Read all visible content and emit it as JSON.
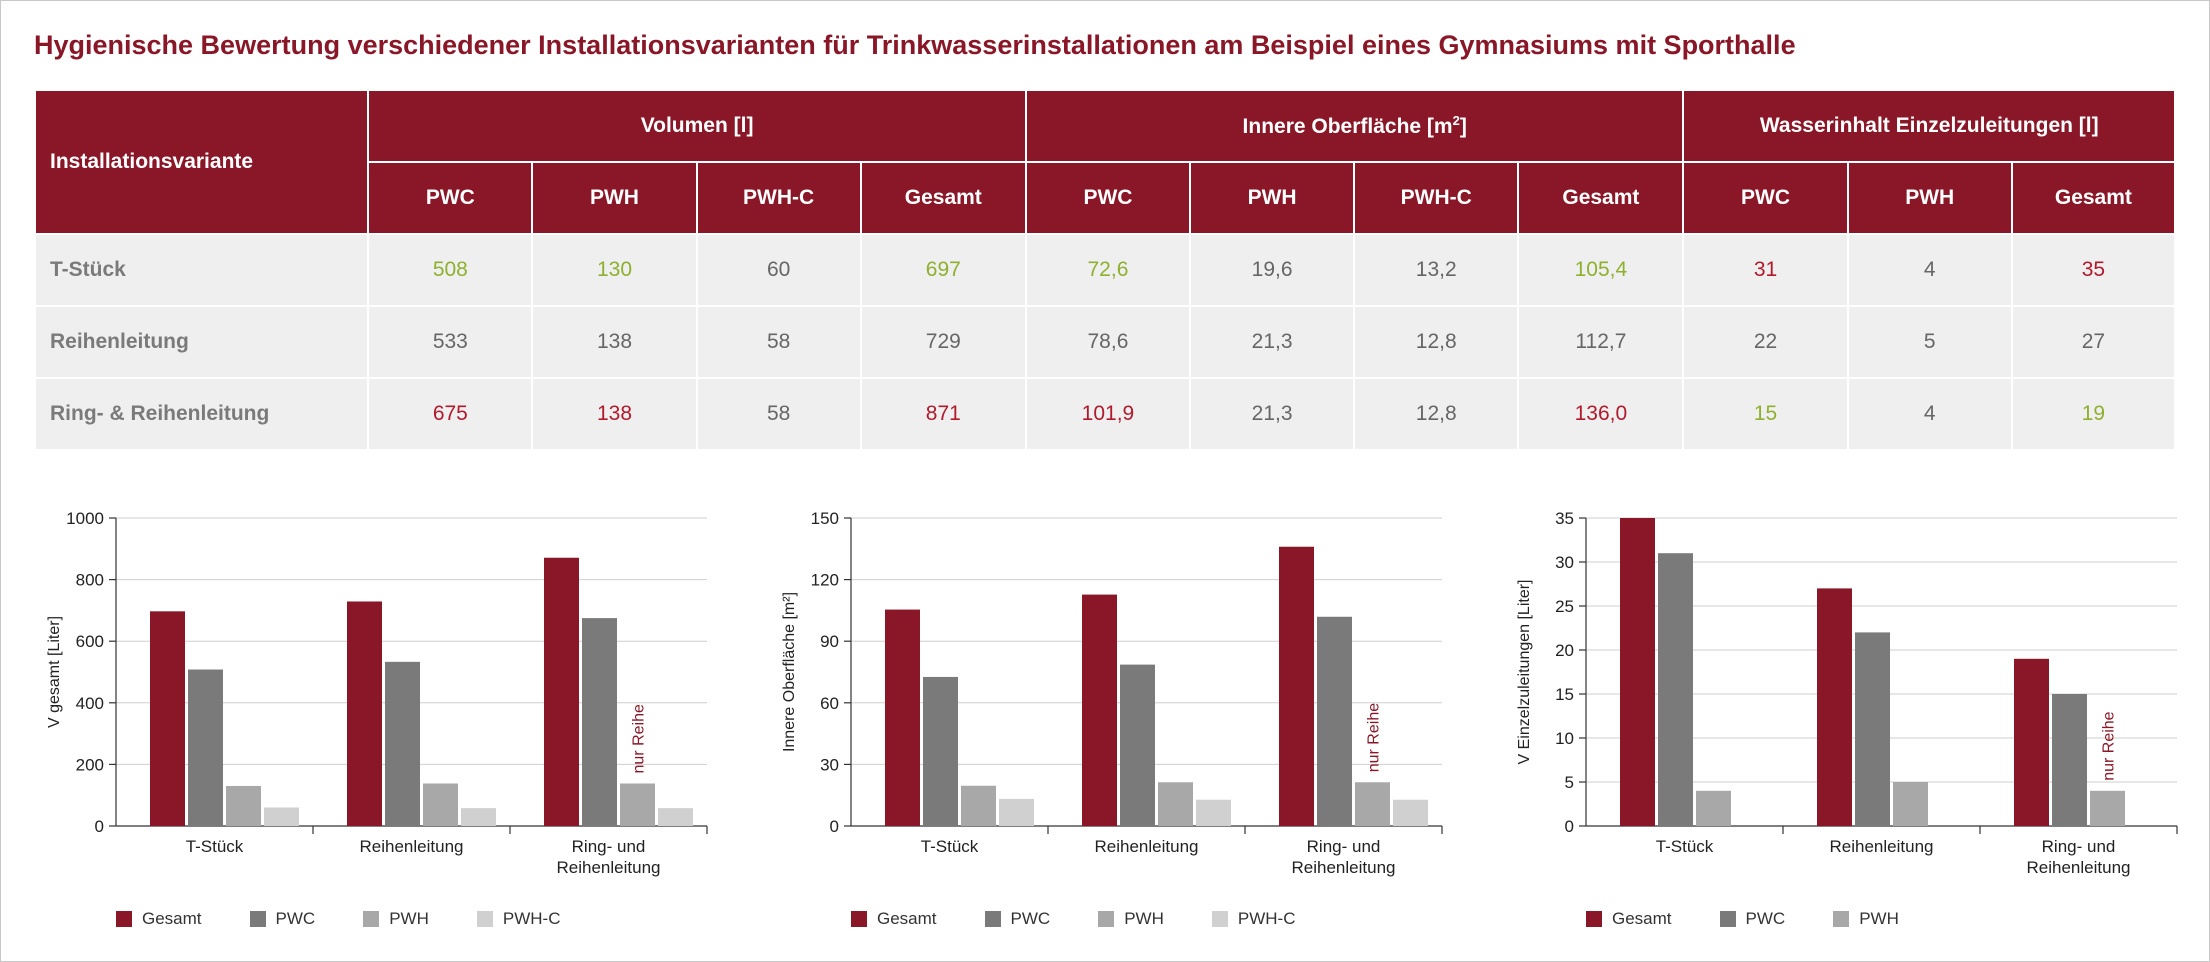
{
  "title": "Hygienische Bewertung verschiedener Installationsvarianten für Trinkwasserinstallationen am Beispiel eines Gymnasiums mit Sporthalle",
  "colors": {
    "gesamt": "#8a1727",
    "pwc": "#7a7a7a",
    "pwh": "#a8a8a8",
    "pwhc": "#d0d0d0",
    "good": "#8fb02e",
    "bad": "#b01a2c"
  },
  "table": {
    "row_header": "Installationsvariante",
    "groups": [
      {
        "label": "Volumen [l]"
      },
      {
        "label": "Innere Oberfläche [m",
        "sup": "2",
        "suffix": "]"
      },
      {
        "label": "Wasserinhalt Einzelzuleitungen [l]"
      }
    ],
    "sub": [
      "PWC",
      "PWH",
      "PWH-C",
      "Gesamt",
      "PWC",
      "PWH",
      "PWH-C",
      "Gesamt",
      "PWC",
      "PWH",
      "Gesamt"
    ],
    "rows": [
      {
        "label": "T-Stück",
        "cells": [
          {
            "v": "508",
            "c": "g"
          },
          {
            "v": "130",
            "c": "g"
          },
          {
            "v": "60",
            "c": ""
          },
          {
            "v": "697",
            "c": "g"
          },
          {
            "v": "72,6",
            "c": "g"
          },
          {
            "v": "19,6",
            "c": ""
          },
          {
            "v": "13,2",
            "c": ""
          },
          {
            "v": "105,4",
            "c": "g"
          },
          {
            "v": "31",
            "c": "r"
          },
          {
            "v": "4",
            "c": ""
          },
          {
            "v": "35",
            "c": "r"
          }
        ]
      },
      {
        "label": "Reihenleitung",
        "cells": [
          {
            "v": "533",
            "c": ""
          },
          {
            "v": "138",
            "c": ""
          },
          {
            "v": "58",
            "c": ""
          },
          {
            "v": "729",
            "c": ""
          },
          {
            "v": "78,6",
            "c": ""
          },
          {
            "v": "21,3",
            "c": ""
          },
          {
            "v": "12,8",
            "c": ""
          },
          {
            "v": "112,7",
            "c": ""
          },
          {
            "v": "22",
            "c": ""
          },
          {
            "v": "5",
            "c": ""
          },
          {
            "v": "27",
            "c": ""
          }
        ]
      },
      {
        "label": "Ring- & Reihenleitung",
        "cells": [
          {
            "v": "675",
            "c": "r"
          },
          {
            "v": "138",
            "c": "r"
          },
          {
            "v": "58",
            "c": ""
          },
          {
            "v": "871",
            "c": "r"
          },
          {
            "v": "101,9",
            "c": "r"
          },
          {
            "v": "21,3",
            "c": ""
          },
          {
            "v": "12,8",
            "c": ""
          },
          {
            "v": "136,0",
            "c": "r"
          },
          {
            "v": "15",
            "c": "g"
          },
          {
            "v": "4",
            "c": ""
          },
          {
            "v": "19",
            "c": "g"
          }
        ]
      }
    ]
  },
  "chart_data": [
    {
      "type": "bar",
      "categories": [
        [
          "T-Stück"
        ],
        [
          "Reihenleitung"
        ],
        [
          "Ring- und",
          "Reihenleitung"
        ]
      ],
      "ylabel": "V gesamt [Liter]",
      "ylim": [
        0,
        1000
      ],
      "yticks": [
        0,
        200,
        400,
        600,
        800,
        1000
      ],
      "series": [
        {
          "name": "Gesamt",
          "color": "#8a1727",
          "values": [
            697,
            729,
            871
          ]
        },
        {
          "name": "PWC",
          "color": "#7a7a7a",
          "values": [
            508,
            533,
            675
          ]
        },
        {
          "name": "PWH",
          "color": "#a8a8a8",
          "values": [
            130,
            138,
            138
          ]
        },
        {
          "name": "PWH-C",
          "color": "#d0d0d0",
          "values": [
            60,
            58,
            58
          ]
        }
      ],
      "annotation": "nur Reihe",
      "legend": "bottom"
    },
    {
      "type": "bar",
      "categories": [
        [
          "T-Stück"
        ],
        [
          "Reihenleitung"
        ],
        [
          "Ring- und",
          "Reihenleitung"
        ]
      ],
      "ylabel": "Innere Oberfläche [m²]",
      "ylim": [
        0,
        150
      ],
      "yticks": [
        0,
        30,
        60,
        90,
        120,
        150
      ],
      "series": [
        {
          "name": "Gesamt",
          "color": "#8a1727",
          "values": [
            105.4,
            112.7,
            136.0
          ]
        },
        {
          "name": "PWC",
          "color": "#7a7a7a",
          "values": [
            72.6,
            78.6,
            101.9
          ]
        },
        {
          "name": "PWH",
          "color": "#a8a8a8",
          "values": [
            19.6,
            21.3,
            21.3
          ]
        },
        {
          "name": "PWH-C",
          "color": "#d0d0d0",
          "values": [
            13.2,
            12.8,
            12.8
          ]
        }
      ],
      "annotation": "nur Reihe",
      "legend": "bottom"
    },
    {
      "type": "bar",
      "categories": [
        [
          "T-Stück"
        ],
        [
          "Reihenleitung"
        ],
        [
          "Ring- und",
          "Reihenleitung"
        ]
      ],
      "ylabel": "V Einzelzuleitungen [Liter]",
      "ylim": [
        0,
        35
      ],
      "yticks": [
        0,
        5,
        10,
        15,
        20,
        25,
        30,
        35
      ],
      "series": [
        {
          "name": "Gesamt",
          "color": "#8a1727",
          "values": [
            35,
            27,
            19
          ]
        },
        {
          "name": "PWC",
          "color": "#7a7a7a",
          "values": [
            31,
            22,
            15
          ]
        },
        {
          "name": "PWH",
          "color": "#a8a8a8",
          "values": [
            4,
            5,
            4
          ]
        }
      ],
      "annotation": "nur Reihe",
      "legend": "bottom"
    }
  ]
}
